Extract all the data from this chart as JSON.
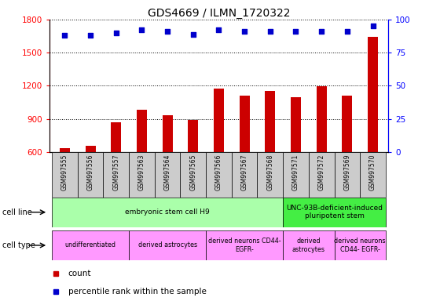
{
  "title": "GDS4669 / ILMN_1720322",
  "samples": [
    "GSM997555",
    "GSM997556",
    "GSM997557",
    "GSM997563",
    "GSM997564",
    "GSM997565",
    "GSM997566",
    "GSM997567",
    "GSM997568",
    "GSM997571",
    "GSM997572",
    "GSM997569",
    "GSM997570"
  ],
  "counts": [
    635,
    655,
    870,
    980,
    935,
    890,
    1175,
    1110,
    1155,
    1095,
    1195,
    1110,
    1640
  ],
  "percentiles": [
    88,
    88,
    90,
    92,
    91,
    89,
    92,
    91,
    91,
    91,
    91,
    91,
    95
  ],
  "ylim_left": [
    600,
    1800
  ],
  "ylim_right": [
    0,
    100
  ],
  "yticks_left": [
    600,
    900,
    1200,
    1500,
    1800
  ],
  "yticks_right": [
    0,
    25,
    50,
    75,
    100
  ],
  "bar_color": "#cc0000",
  "dot_color": "#0000cc",
  "cell_line_groups": [
    {
      "label": "embryonic stem cell H9",
      "start": 0,
      "end": 9,
      "color": "#aaffaa"
    },
    {
      "label": "UNC-93B-deficient-induced\npluripotent stem",
      "start": 9,
      "end": 13,
      "color": "#44ee44"
    }
  ],
  "cell_type_groups": [
    {
      "label": "undifferentiated",
      "start": 0,
      "end": 3,
      "color": "#ff99ff"
    },
    {
      "label": "derived astrocytes",
      "start": 3,
      "end": 6,
      "color": "#ff99ff"
    },
    {
      "label": "derived neurons CD44-\nEGFR-",
      "start": 6,
      "end": 9,
      "color": "#ff99ff"
    },
    {
      "label": "derived\nastrocytes",
      "start": 9,
      "end": 11,
      "color": "#ff99ff"
    },
    {
      "label": "derived neurons\nCD44- EGFR-",
      "start": 11,
      "end": 13,
      "color": "#ff99ff"
    }
  ],
  "legend_count_color": "#cc0000",
  "legend_dot_color": "#0000cc",
  "background_color": "#ffffff",
  "sample_bg_color": "#cccccc"
}
